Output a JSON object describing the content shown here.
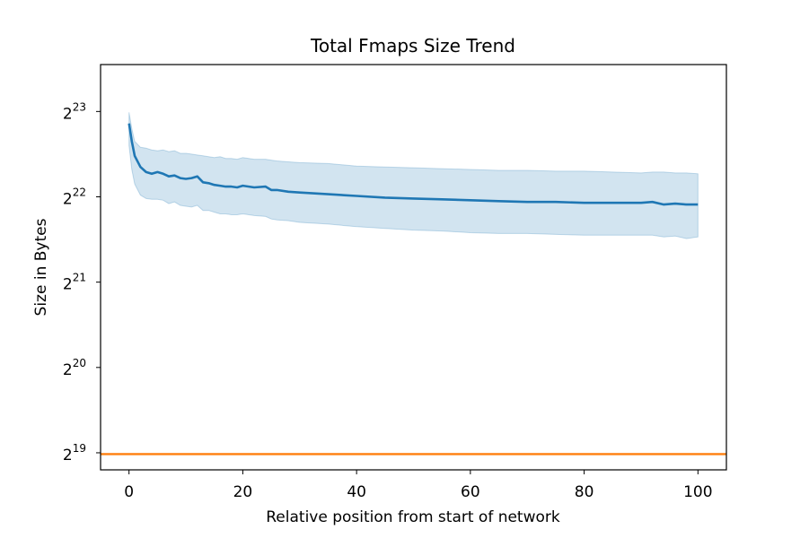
{
  "chart_data": {
    "type": "line",
    "title": "Total Fmaps Size Trend",
    "xlabel": "Relative position from start of network",
    "ylabel": "Size in Bytes",
    "y_scale": "log2",
    "xlim": [
      -5,
      105
    ],
    "ylim_exponent": [
      18.8,
      23.55
    ],
    "x_ticks": [
      {
        "value": 0,
        "label": "0"
      },
      {
        "value": 20,
        "label": "20"
      },
      {
        "value": 40,
        "label": "40"
      },
      {
        "value": 60,
        "label": "60"
      },
      {
        "value": 80,
        "label": "80"
      },
      {
        "value": 100,
        "label": "100"
      }
    ],
    "y_ticks": [
      {
        "value": 524288,
        "exponent": 19,
        "base": "2",
        "sup": "19"
      },
      {
        "value": 1048576,
        "exponent": 20,
        "base": "2",
        "sup": "20"
      },
      {
        "value": 2097152,
        "exponent": 21,
        "base": "2",
        "sup": "21"
      },
      {
        "value": 4194304,
        "exponent": 22,
        "base": "2",
        "sup": "22"
      },
      {
        "value": 8388608,
        "exponent": 23,
        "base": "2",
        "sup": "23"
      }
    ],
    "grid": false,
    "legend": "none",
    "series": [
      {
        "color": "#1f77b4",
        "band_color": "#1f77b4",
        "x": [
          0,
          0.5,
          1,
          2,
          3,
          4,
          5,
          6,
          7,
          8,
          9,
          10,
          11,
          12,
          13,
          14,
          15,
          16,
          17,
          18,
          19,
          20,
          22,
          24,
          25,
          26,
          28,
          30,
          35,
          40,
          45,
          50,
          55,
          60,
          65,
          70,
          75,
          80,
          85,
          90,
          92,
          94,
          96,
          98,
          100
        ],
        "y_exponent": [
          22.86,
          22.65,
          22.48,
          22.35,
          22.29,
          22.27,
          22.29,
          22.27,
          22.24,
          22.25,
          22.22,
          22.21,
          22.22,
          22.24,
          22.17,
          22.16,
          22.14,
          22.13,
          22.12,
          22.12,
          22.11,
          22.13,
          22.11,
          22.12,
          22.08,
          22.08,
          22.06,
          22.05,
          22.03,
          22.01,
          21.99,
          21.98,
          21.97,
          21.96,
          21.95,
          21.94,
          21.94,
          21.93,
          21.93,
          21.93,
          21.94,
          21.91,
          21.92,
          21.91,
          21.91
        ],
        "band_upper_exponent": [
          22.99,
          22.8,
          22.65,
          22.58,
          22.57,
          22.55,
          22.54,
          22.55,
          22.53,
          22.54,
          22.51,
          22.51,
          22.5,
          22.49,
          22.48,
          22.47,
          22.46,
          22.47,
          22.45,
          22.45,
          22.44,
          22.46,
          22.44,
          22.44,
          22.43,
          22.42,
          22.41,
          22.4,
          22.39,
          22.36,
          22.35,
          22.34,
          22.33,
          22.32,
          22.31,
          22.31,
          22.3,
          22.3,
          22.29,
          22.28,
          22.29,
          22.29,
          22.28,
          22.28,
          22.27
        ],
        "band_lower_exponent": [
          22.6,
          22.32,
          22.15,
          22.02,
          21.98,
          21.97,
          21.97,
          21.96,
          21.92,
          21.94,
          21.9,
          21.89,
          21.88,
          21.9,
          21.84,
          21.84,
          21.82,
          21.8,
          21.8,
          21.79,
          21.79,
          21.8,
          21.78,
          21.77,
          21.74,
          21.73,
          21.72,
          21.7,
          21.68,
          21.65,
          21.63,
          21.61,
          21.6,
          21.58,
          21.57,
          21.57,
          21.56,
          21.55,
          21.55,
          21.55,
          21.55,
          21.53,
          21.54,
          21.51,
          21.53
        ]
      }
    ],
    "reference_line": {
      "color": "#ff7f0e",
      "y_exponent": 18.985
    }
  }
}
